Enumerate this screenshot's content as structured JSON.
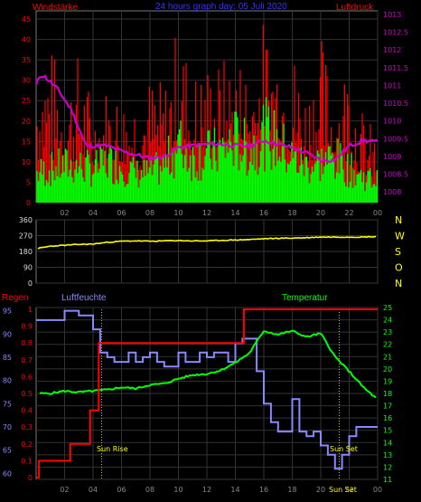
{
  "header": {
    "title": "24 hours graph day: 05 Juli 2020",
    "left_label": "Windstärke",
    "right_label": "Luftdruck"
  },
  "colors": {
    "wind_gust": "#ff0000",
    "wind_avg": "#00ff00",
    "pressure": "#cc00cc",
    "direction": "#ffff00",
    "rain": "#ff0000",
    "humidity": "#8888ff",
    "temperature": "#00ff00",
    "grid": "#333333",
    "title": "#3333ff"
  },
  "chart_data": [
    {
      "type": "line",
      "title": "24 hours graph day: 05 Juli 2020",
      "x_ticks": [
        "02",
        "04",
        "06",
        "08",
        "10",
        "12",
        "14",
        "16",
        "18",
        "20",
        "22",
        "00"
      ],
      "x_range_hours": [
        0,
        24
      ],
      "left_axis": {
        "label": "Windstärke",
        "range": [
          0,
          47
        ],
        "ticks": [
          "0",
          "5",
          "10",
          "15",
          "20",
          "25",
          "30",
          "35",
          "40",
          "45"
        ]
      },
      "right_axis": {
        "label": "Luftdruck",
        "range": [
          1007.7,
          1013.1
        ],
        "ticks": [
          "1008",
          "1008.5",
          "1009",
          "1009.5",
          "1010",
          "1010.5",
          "1011",
          "1011.5",
          "1012",
          "1012.5",
          "1013"
        ]
      },
      "series": [
        {
          "name": "",
          "axis": "right",
          "x": [
            0,
            0.3,
            0.6,
            1,
            1.5,
            2,
            2.5,
            3,
            3.5,
            4,
            5,
            6,
            7,
            8,
            9,
            10,
            11,
            12,
            13,
            14,
            15,
            16,
            17,
            18,
            19,
            20,
            21,
            22,
            23,
            24
          ],
          "y": [
            1011.0,
            1011.3,
            1011.25,
            1011.1,
            1010.9,
            1010.6,
            1010.3,
            1009.8,
            1009.3,
            1009.3,
            1009.3,
            1009.15,
            1009.05,
            1008.95,
            1009.0,
            1009.25,
            1009.3,
            1009.35,
            1009.35,
            1009.3,
            1009.3,
            1009.45,
            1009.35,
            1009.25,
            1009.1,
            1008.9,
            1008.9,
            1009.3,
            1009.45,
            1009.4
          ]
        },
        {
          "name": "",
          "axis": "left",
          "x": [
            0,
            1,
            2,
            3,
            4,
            5,
            6,
            7,
            8,
            9,
            10,
            11,
            12,
            13,
            14,
            15,
            16,
            17,
            18,
            19,
            20,
            21,
            22,
            23,
            24
          ],
          "y": [
            38,
            40,
            30,
            38,
            26,
            30,
            28,
            30,
            32,
            30,
            46,
            33,
            36,
            36,
            38,
            36,
            46,
            44,
            40,
            30,
            42,
            30,
            38,
            22,
            18
          ]
        },
        {
          "name": "",
          "axis": "left",
          "x": [
            0,
            1,
            2,
            3,
            4,
            5,
            6,
            7,
            8,
            9,
            10,
            11,
            12,
            13,
            14,
            15,
            16,
            17,
            18,
            19,
            20,
            21,
            22,
            23,
            24
          ],
          "y": [
            8,
            9,
            10,
            10,
            9,
            11,
            10,
            8,
            8,
            10,
            16,
            12,
            13,
            14,
            17,
            14,
            19,
            16,
            12,
            10,
            11,
            12,
            9,
            7,
            6
          ]
        }
      ]
    },
    {
      "type": "line",
      "x_ticks": [
        "02",
        "04",
        "06",
        "08",
        "10",
        "12",
        "14",
        "16",
        "18",
        "20",
        "22",
        "00"
      ],
      "x_range_hours": [
        0,
        24
      ],
      "left_axis": {
        "range": [
          0,
          360
        ],
        "ticks": [
          "0",
          "90",
          "180",
          "270",
          "360"
        ]
      },
      "right_labels": [
        "N",
        "W",
        "S",
        "O",
        "N"
      ],
      "series": [
        {
          "name": "",
          "axis": "left",
          "x": [
            0,
            1,
            2,
            3,
            4,
            5,
            6,
            7,
            8,
            9,
            10,
            11,
            12,
            13,
            14,
            15,
            16,
            17,
            18,
            19,
            20,
            21,
            22,
            23,
            24
          ],
          "y": [
            195,
            210,
            215,
            220,
            222,
            232,
            238,
            240,
            238,
            240,
            242,
            240,
            240,
            243,
            245,
            248,
            252,
            255,
            256,
            258,
            262,
            262,
            262,
            262,
            265
          ]
        }
      ]
    },
    {
      "type": "line",
      "left_label_1": "Regen",
      "left_label_2": "Luftfeuchte",
      "right_label": "Temperatur",
      "x_ticks": [
        "02",
        "04",
        "06",
        "08",
        "10",
        "12",
        "14",
        "16",
        "18",
        "20",
        "22",
        "00"
      ],
      "x_range_hours": [
        0,
        24
      ],
      "rain_axis": {
        "range": [
          0,
          1.0
        ],
        "ticks": [
          "0",
          "0.1",
          "0.2",
          "0.3",
          "0.4",
          "0.5",
          "0.6",
          "0.7",
          "0.8",
          "0.9",
          "1"
        ]
      },
      "humidity_axis": {
        "range": [
          58.7,
          95.7
        ],
        "ticks": [
          "60",
          "65",
          "70",
          "75",
          "80",
          "85",
          "90",
          "95"
        ]
      },
      "temperature_axis": {
        "range": [
          11,
          25
        ],
        "ticks": [
          "11",
          "12",
          "13",
          "14",
          "15",
          "16",
          "17",
          "18",
          "19",
          "20",
          "21",
          "22",
          "23",
          "24",
          "25"
        ]
      },
      "annotations": [
        "Sun Rise",
        "Sun Set",
        "Sun Set"
      ],
      "series": [
        {
          "name": "Regen",
          "axis": "rain",
          "x": [
            0,
            0.2,
            0.2,
            2.4,
            2.4,
            3.8,
            3.8,
            4.4,
            4.4,
            14.6,
            14.6,
            24
          ],
          "y": [
            0,
            0,
            0.1,
            0.1,
            0.2,
            0.2,
            0.4,
            0.4,
            0.8,
            0.8,
            1.0,
            1.0
          ]
        },
        {
          "name": "Luftfeuchte",
          "axis": "humidity",
          "x": [
            0,
            1,
            1.5,
            2,
            2.5,
            3,
            3.5,
            4,
            4.5,
            5,
            5.5,
            6,
            6.5,
            7,
            7.5,
            8,
            8.5,
            9,
            9.5,
            10,
            10.5,
            11,
            11.5,
            12,
            12.5,
            13,
            13.5,
            14,
            14.5,
            15,
            15.5,
            16,
            16.5,
            17,
            17.5,
            18,
            18.5,
            19,
            19.5,
            20,
            20.5,
            21,
            21.5,
            22,
            22.5,
            23,
            23.5,
            24
          ],
          "y": [
            93,
            93,
            93,
            95,
            95,
            94,
            94,
            91,
            86,
            85,
            84,
            84,
            86,
            84,
            85,
            86,
            84,
            83,
            83,
            86,
            84,
            84,
            86,
            85,
            86,
            86,
            84,
            88,
            89,
            89,
            82,
            75,
            71,
            69,
            69,
            76,
            69,
            68,
            69,
            66,
            64,
            61,
            64,
            68,
            70,
            70,
            70,
            70
          ]
        },
        {
          "name": "Temperatur",
          "axis": "temperature",
          "x": [
            0,
            1,
            2,
            3,
            4,
            5,
            6,
            7,
            8,
            9,
            10,
            11,
            12,
            13,
            14,
            15,
            16,
            17,
            18,
            19,
            20,
            21,
            22,
            23,
            24
          ],
          "y": [
            18.0,
            18.0,
            18.2,
            18.1,
            18.2,
            18.3,
            18.5,
            18.4,
            18.7,
            18.8,
            19.2,
            19.5,
            19.6,
            19.9,
            20.5,
            21.3,
            23.1,
            22.8,
            23.1,
            22.6,
            22.9,
            21.0,
            19.8,
            18.5,
            17.5
          ]
        }
      ]
    }
  ]
}
